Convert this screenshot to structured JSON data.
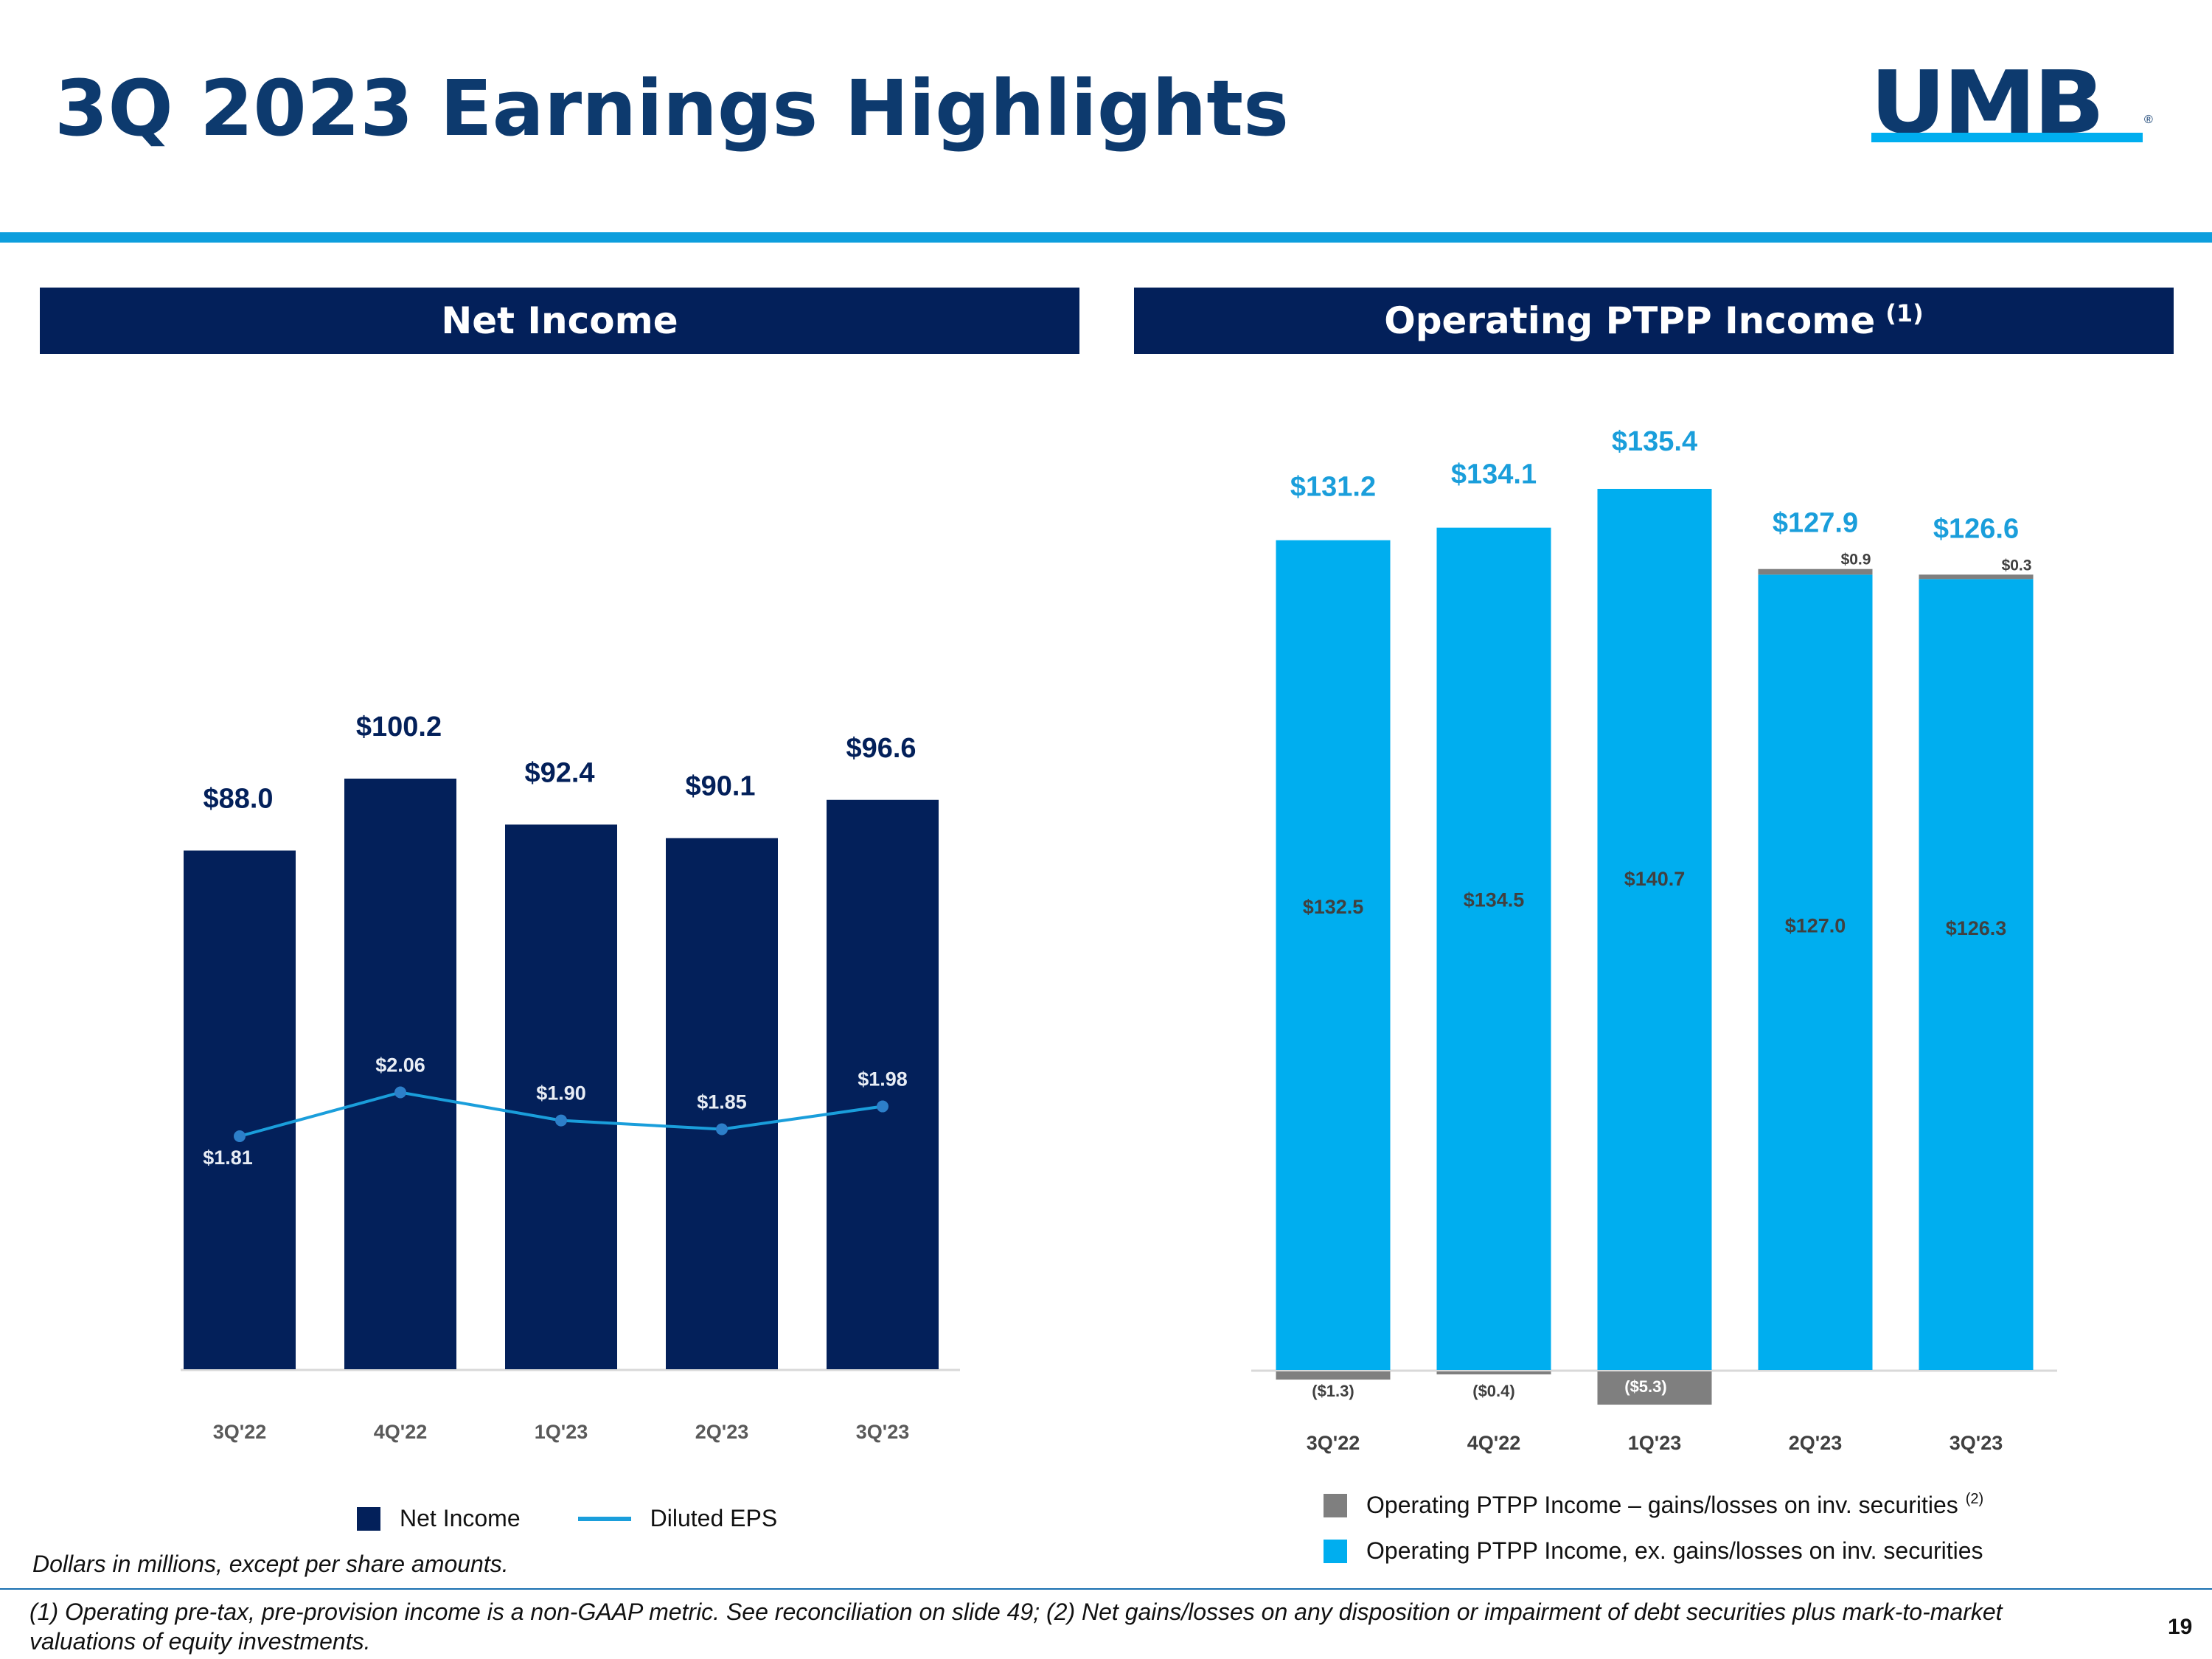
{
  "page": {
    "title": "3Q 2023 Earnings Highlights",
    "logo_text": "UMB",
    "logo_mark": "®",
    "page_number": "19",
    "units_note": "Dollars in millions, except per share amounts.",
    "footnote": "(1) Operating pre-tax, pre-provision income is a non-GAAP metric. See reconciliation on slide 49; (2) Net gains/losses on any disposition or impairment of debt securities plus mark-to-market valuations of equity investments."
  },
  "colors": {
    "navy": "#03205a",
    "title_blue": "#0d3a6e",
    "bright_blue": "#00aeef",
    "line_blue": "#1a9edb",
    "gray": "#7f7f7f"
  },
  "panels": {
    "left": {
      "title": "Net Income"
    },
    "right": {
      "title": "Operating PTPP Income",
      "title_note": "(1)"
    }
  },
  "legend_left": {
    "bar": "Net Income",
    "line": "Diluted EPS"
  },
  "legend_right": {
    "gray": "Operating PTPP Income – gains/losses on inv. securities",
    "gray_note": "(2)",
    "blue": "Operating PTPP Income, ex. gains/losses on inv. securities"
  },
  "chart_data": [
    {
      "type": "bar",
      "title": "Net Income",
      "categories": [
        "3Q'22",
        "4Q'22",
        "1Q'23",
        "2Q'23",
        "3Q'23"
      ],
      "series": [
        {
          "name": "Net Income",
          "type": "bar",
          "values": [
            88.0,
            100.2,
            92.4,
            90.1,
            96.6
          ],
          "labels": [
            "$88.0",
            "$100.2",
            "$92.4",
            "$90.1",
            "$96.6"
          ]
        },
        {
          "name": "Diluted EPS",
          "type": "line",
          "values": [
            1.81,
            2.06,
            1.9,
            1.85,
            1.98
          ],
          "labels": [
            "$1.81",
            "$2.06",
            "$1.90",
            "$1.85",
            "$1.98"
          ]
        }
      ],
      "ylim": [
        0,
        100.2
      ],
      "eps_ylim": [
        0,
        10
      ]
    },
    {
      "type": "bar",
      "stacked": true,
      "title": "Operating PTPP Income",
      "categories": [
        "3Q'22",
        "4Q'22",
        "1Q'23",
        "2Q'23",
        "3Q'23"
      ],
      "series": [
        {
          "name": "Operating PTPP Income, ex. gains/losses on inv. securities",
          "values": [
            132.5,
            134.5,
            140.7,
            127.0,
            126.3
          ],
          "labels": [
            "$132.5",
            "$134.5",
            "$140.7",
            "$127.0",
            "$126.3"
          ]
        },
        {
          "name": "Operating PTPP Income – gains/losses on inv. securities",
          "values": [
            -1.3,
            -0.4,
            -5.3,
            0.9,
            0.3
          ],
          "labels": [
            "($1.3)",
            "($0.4)",
            "($5.3)",
            "$0.9",
            "$0.3"
          ]
        }
      ],
      "totals": [
        131.2,
        134.1,
        135.4,
        127.9,
        126.6
      ],
      "total_labels": [
        "$131.2",
        "$134.1",
        "$135.4",
        "$127.9",
        "$126.6"
      ],
      "ylim": [
        -6,
        141
      ]
    }
  ]
}
